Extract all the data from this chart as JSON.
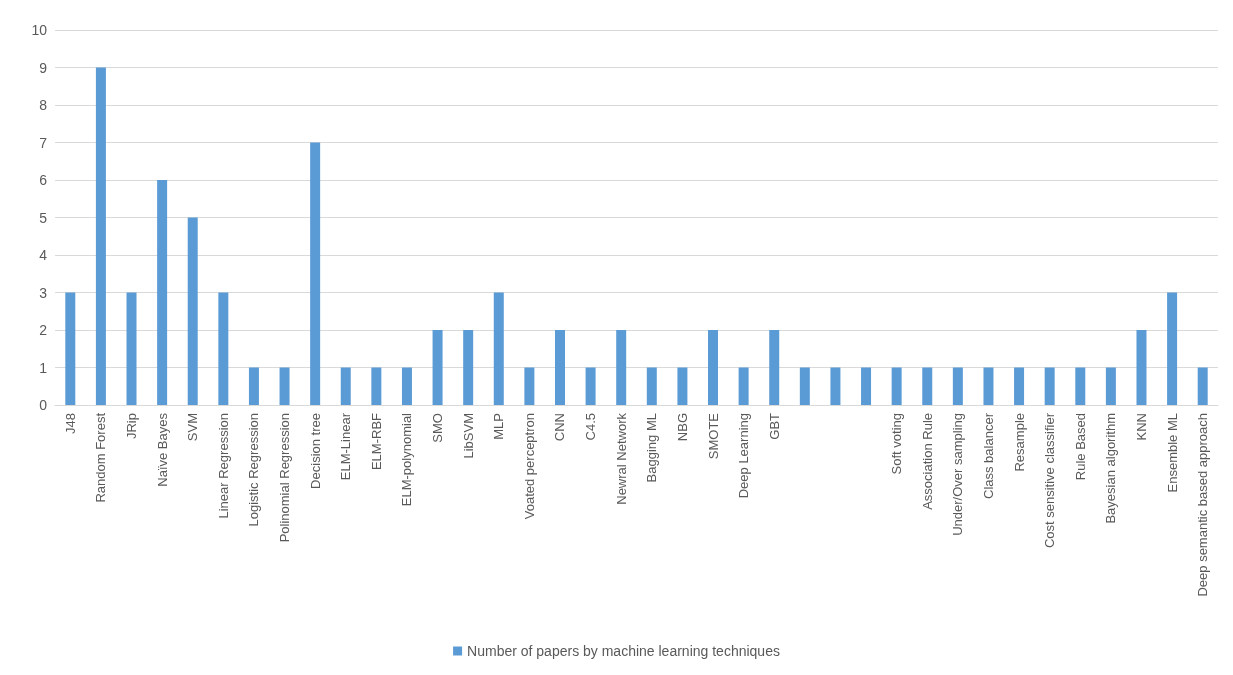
{
  "chart_data": {
    "type": "bar",
    "categories": [
      "J48",
      "Random Forest",
      "JRip",
      "Naïve Bayes",
      "SVM",
      "Linear Regression",
      "Logistic Regression",
      "Polinomial Regression",
      "Decision tree",
      "ELM-Linear",
      "ELM-RBF",
      "ELM-polynomial",
      "SMO",
      "LibSVM",
      "MLP",
      "Voated perceptron",
      "CNN",
      "C4.5",
      "Newral Network",
      "Bagging ML",
      "NBG",
      "SMOTE",
      "Deep Learning",
      "GBT",
      null,
      null,
      null,
      "Soft voting",
      "Association Rule",
      "Under/Over sampling",
      "Class balancer",
      "Resample",
      "Cost sensitive classifier",
      "Rule Based",
      "Bayesian algorithm",
      "KNN",
      "Ensemble ML",
      "Deep semantic based approach"
    ],
    "series": [
      {
        "name": "Number of papers by machine learning techniques",
        "color": "#5b9bd5",
        "values": [
          3,
          9,
          3,
          6,
          5,
          3,
          1,
          1,
          7,
          1,
          1,
          1,
          2,
          2,
          3,
          1,
          2,
          1,
          2,
          1,
          1,
          2,
          1,
          2,
          1,
          1,
          1,
          1,
          1,
          1,
          1,
          1,
          1,
          1,
          1,
          2,
          3,
          1
        ]
      }
    ],
    "ylim": [
      0,
      10
    ],
    "yticks": [
      0,
      1,
      2,
      3,
      4,
      5,
      6,
      7,
      8,
      9,
      10
    ],
    "grid": "y",
    "legend": "bottom"
  }
}
